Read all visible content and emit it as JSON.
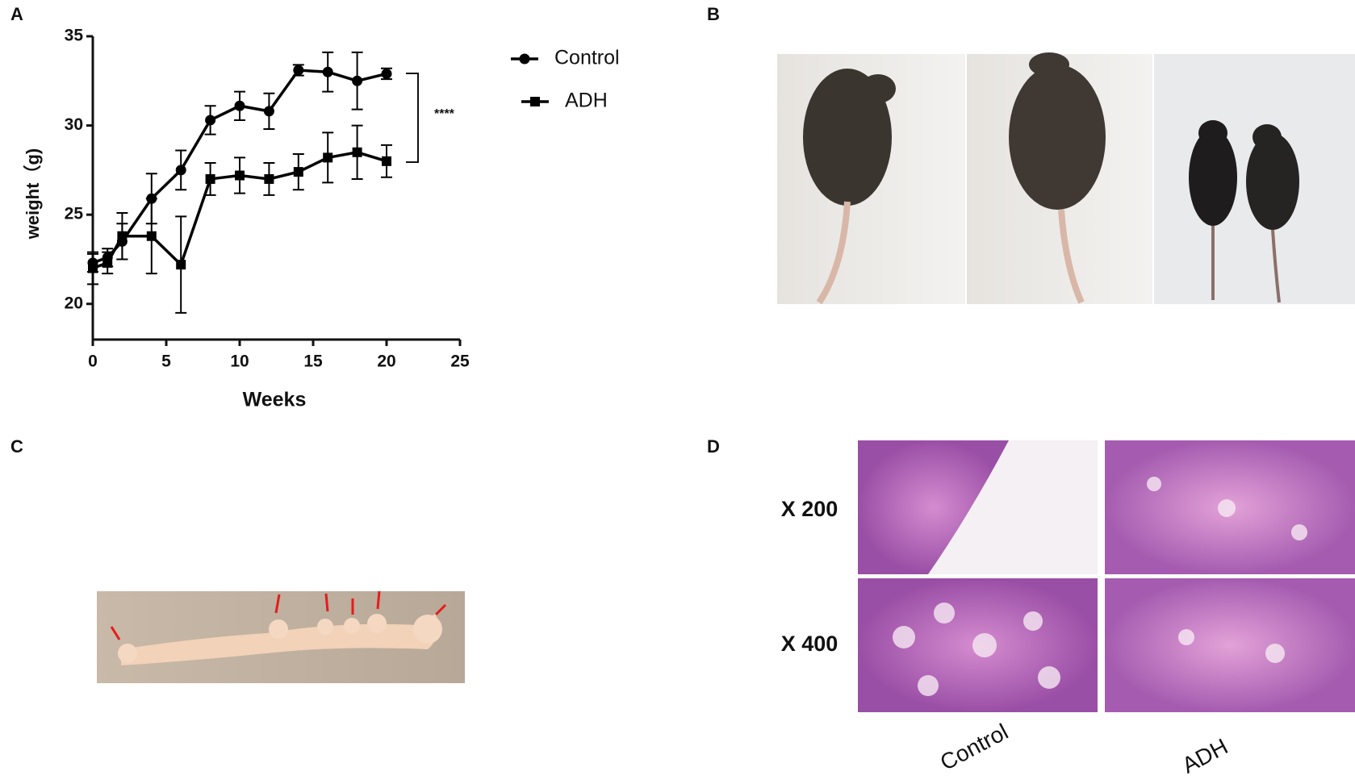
{
  "panel_labels": [
    "A",
    "B",
    "C",
    "D"
  ],
  "chart_data": {
    "type": "line",
    "x_label": "Weeks",
    "y_label": "weight（g)",
    "annotation": "****",
    "xlim": [
      0,
      25
    ],
    "xticks": [
      0,
      5,
      10,
      15,
      20,
      25
    ],
    "ylim": [
      18,
      35
    ],
    "yticks": [
      20,
      25,
      30,
      35
    ],
    "x": [
      0,
      1,
      2,
      4,
      6,
      8,
      10,
      12,
      14,
      16,
      18,
      20
    ],
    "series": [
      {
        "name": "Control",
        "color": "#000000",
        "marker": "circle",
        "values": [
          22.3,
          22.6,
          23.5,
          25.9,
          27.5,
          30.3,
          31.1,
          30.8,
          33.1,
          33.0,
          32.5,
          32.9
        ],
        "errors": [
          0.5,
          0.5,
          1.0,
          1.4,
          1.1,
          0.8,
          0.8,
          1.0,
          0.3,
          1.1,
          1.6,
          0.3
        ]
      },
      {
        "name": "ADH",
        "color": "#000000",
        "marker": "square",
        "values": [
          22.0,
          22.3,
          23.8,
          23.8,
          22.2,
          27.0,
          27.2,
          27.0,
          27.4,
          28.2,
          28.5,
          28.0
        ],
        "errors": [
          0.9,
          0.6,
          1.3,
          2.1,
          2.7,
          0.9,
          1.0,
          0.9,
          1.0,
          1.4,
          1.5,
          0.9
        ]
      }
    ]
  },
  "panel_d": {
    "rows": [
      "X 200",
      "X 400"
    ],
    "columns": [
      "Control",
      "ADH"
    ]
  }
}
